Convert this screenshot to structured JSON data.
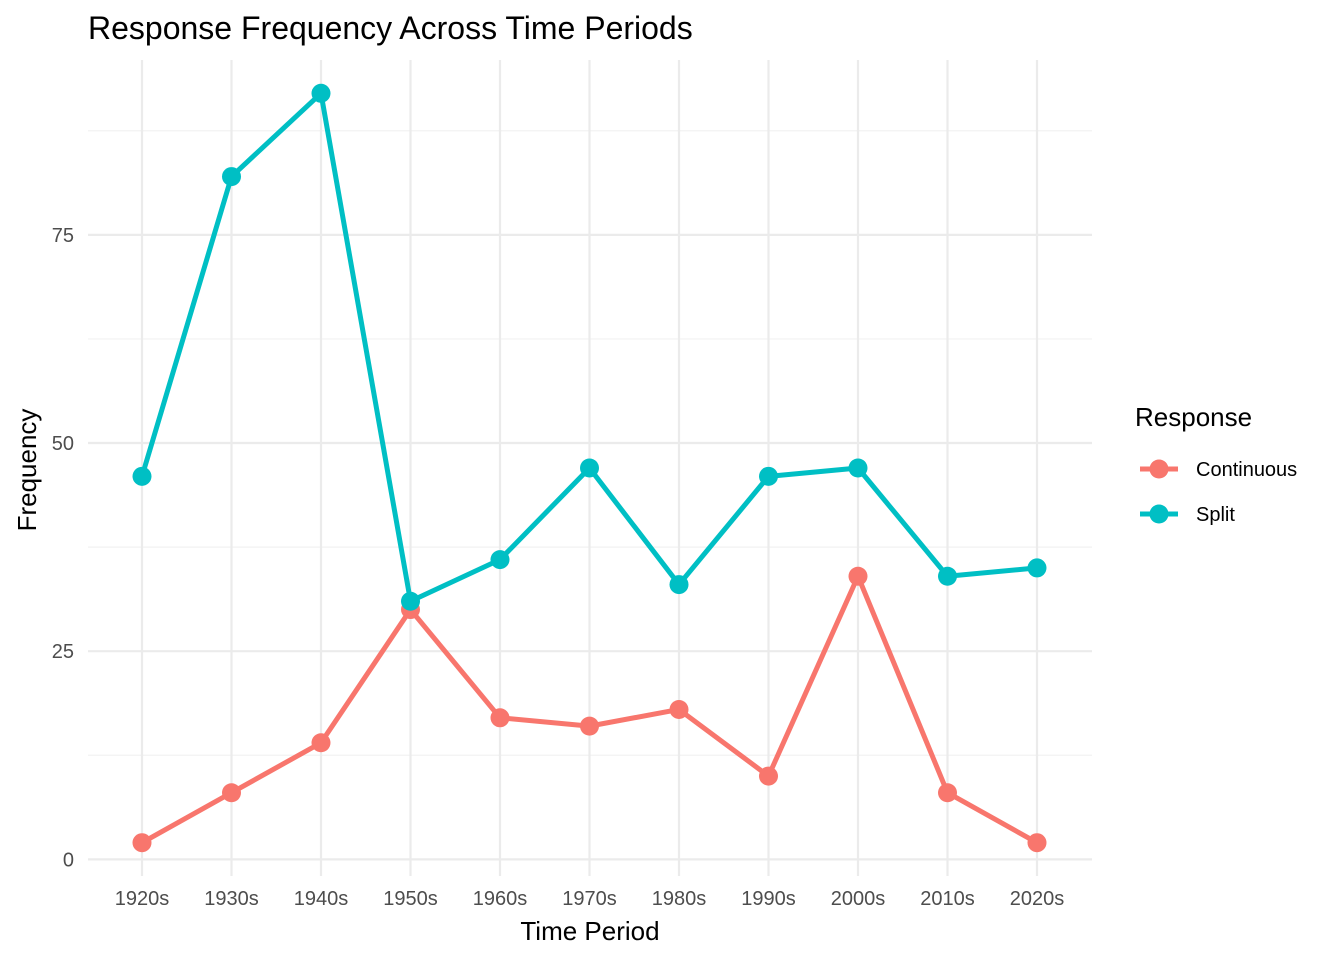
{
  "chart_data": {
    "type": "line",
    "title": "Response Frequency Across Time Periods",
    "xlabel": "Time Period",
    "ylabel": "Frequency",
    "categories": [
      "1920s",
      "1930s",
      "1940s",
      "1950s",
      "1960s",
      "1970s",
      "1980s",
      "1990s",
      "2000s",
      "2010s",
      "2020s"
    ],
    "ylim": [
      -2,
      96
    ],
    "yticks": [
      0,
      25,
      50,
      75
    ],
    "yminor": [
      12.5,
      37.5,
      62.5,
      87.5
    ],
    "grid": true,
    "legend": {
      "title": "Response",
      "position": "right"
    },
    "series": [
      {
        "name": "Continuous",
        "color": "#F8766D",
        "values": [
          2,
          8,
          14,
          30,
          17,
          16,
          18,
          10,
          34,
          8,
          2
        ]
      },
      {
        "name": "Split",
        "color": "#00BFC4",
        "values": [
          46,
          82,
          92,
          31,
          36,
          47,
          33,
          46,
          47,
          34,
          35
        ]
      }
    ]
  }
}
